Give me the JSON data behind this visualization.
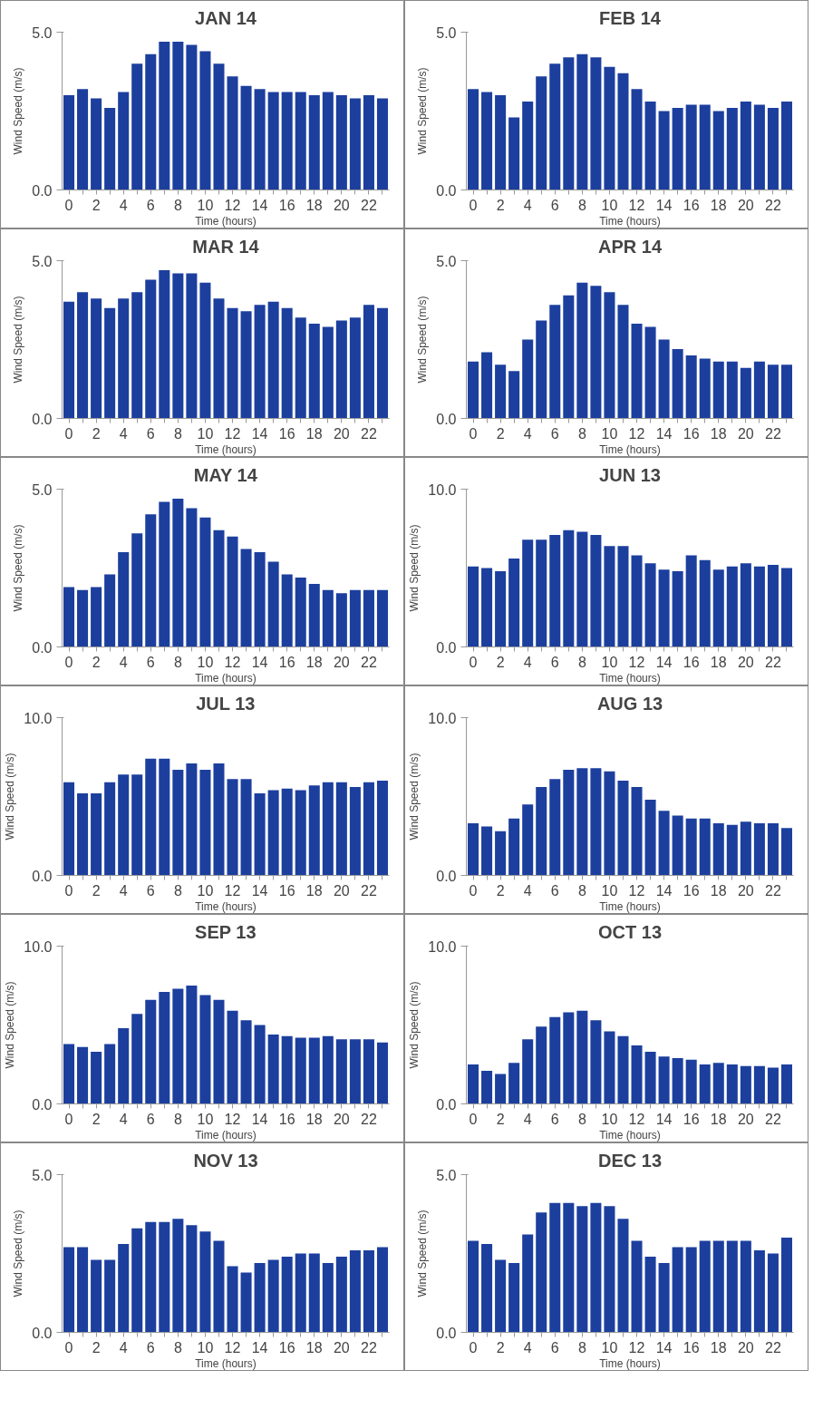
{
  "chart_data": [
    {
      "type": "bar",
      "title": "JAN 14",
      "xlabel": "Time (hours)",
      "ylabel": "Wind Speed (m/s)",
      "categories": [
        "0",
        null,
        "2",
        null,
        "4",
        null,
        "6",
        null,
        "8",
        null,
        "10",
        null,
        "12",
        null,
        "14",
        null,
        "16",
        null,
        "18",
        null,
        "20",
        null,
        "22",
        null
      ],
      "color": "#1c3f9e",
      "ylim": [
        0,
        5
      ],
      "yticks": [
        {
          "value": 0,
          "label": "0.0"
        },
        {
          "value": 5,
          "label": "5.0"
        }
      ],
      "grid": false,
      "values": [
        3.0,
        3.2,
        2.9,
        2.6,
        3.1,
        4.0,
        4.3,
        4.7,
        4.7,
        4.6,
        4.4,
        4.0,
        3.6,
        3.3,
        3.2,
        3.1,
        3.1,
        3.1,
        3.0,
        3.1,
        3.0,
        2.9,
        3.0,
        2.9
      ]
    },
    {
      "type": "bar",
      "title": "FEB 14",
      "xlabel": "Time (hours)",
      "ylabel": "Wind Speed (m/s)",
      "categories": [
        "0",
        null,
        "2",
        null,
        "4",
        null,
        "6",
        null,
        "8",
        null,
        "10",
        null,
        "12",
        null,
        "14",
        null,
        "16",
        null,
        "18",
        null,
        "20",
        null,
        "22",
        null
      ],
      "color": "#1c3f9e",
      "ylim": [
        0,
        5
      ],
      "yticks": [
        {
          "value": 0,
          "label": "0.0"
        },
        {
          "value": 5,
          "label": "5.0"
        }
      ],
      "grid": false,
      "values": [
        3.2,
        3.1,
        3.0,
        2.3,
        2.8,
        3.6,
        4.0,
        4.2,
        4.3,
        4.2,
        3.9,
        3.7,
        3.2,
        2.8,
        2.5,
        2.6,
        2.7,
        2.7,
        2.5,
        2.6,
        2.8,
        2.7,
        2.6,
        2.8
      ]
    },
    {
      "type": "bar",
      "title": "MAR 14",
      "xlabel": "Time (hours)",
      "ylabel": "Wind Speed (m/s)",
      "categories": [
        "0",
        null,
        "2",
        null,
        "4",
        null,
        "6",
        null,
        "8",
        null,
        "10",
        null,
        "12",
        null,
        "14",
        null,
        "16",
        null,
        "18",
        null,
        "20",
        null,
        "22",
        null
      ],
      "color": "#1c3f9e",
      "ylim": [
        0,
        5
      ],
      "yticks": [
        {
          "value": 0,
          "label": "0.0"
        },
        {
          "value": 5,
          "label": "5.0"
        }
      ],
      "grid": false,
      "values": [
        3.7,
        4.0,
        3.8,
        3.5,
        3.8,
        4.0,
        4.4,
        4.7,
        4.6,
        4.6,
        4.3,
        3.8,
        3.5,
        3.4,
        3.6,
        3.7,
        3.5,
        3.2,
        3.0,
        2.9,
        3.1,
        3.2,
        3.6,
        3.5
      ]
    },
    {
      "type": "bar",
      "title": "APR 14",
      "xlabel": "Time (hours)",
      "ylabel": "Wind Speed (m/s)",
      "categories": [
        "0",
        null,
        "2",
        null,
        "4",
        null,
        "6",
        null,
        "8",
        null,
        "10",
        null,
        "12",
        null,
        "14",
        null,
        "16",
        null,
        "18",
        null,
        "20",
        null,
        "22",
        null
      ],
      "color": "#1c3f9e",
      "ylim": [
        0,
        5
      ],
      "yticks": [
        {
          "value": 0,
          "label": "0.0"
        },
        {
          "value": 5,
          "label": "5.0"
        }
      ],
      "grid": false,
      "values": [
        1.8,
        2.1,
        1.7,
        1.5,
        2.5,
        3.1,
        3.6,
        3.9,
        4.3,
        4.2,
        4.0,
        3.6,
        3.0,
        2.9,
        2.5,
        2.2,
        2.0,
        1.9,
        1.8,
        1.8,
        1.6,
        1.8,
        1.7,
        1.7
      ]
    },
    {
      "type": "bar",
      "title": "MAY 14",
      "xlabel": "Time (hours)",
      "ylabel": "Wind Speed (m/s)",
      "categories": [
        "0",
        null,
        "2",
        null,
        "4",
        null,
        "6",
        null,
        "8",
        null,
        "10",
        null,
        "12",
        null,
        "14",
        null,
        "16",
        null,
        "18",
        null,
        "20",
        null,
        "22",
        null
      ],
      "color": "#1c3f9e",
      "ylim": [
        0,
        5
      ],
      "yticks": [
        {
          "value": 0,
          "label": "0.0"
        },
        {
          "value": 5,
          "label": "5.0"
        }
      ],
      "grid": false,
      "values": [
        1.9,
        1.8,
        1.9,
        2.3,
        3.0,
        3.6,
        4.2,
        4.6,
        4.7,
        4.4,
        4.1,
        3.7,
        3.5,
        3.1,
        3.0,
        2.7,
        2.3,
        2.2,
        2.0,
        1.8,
        1.7,
        1.8,
        1.8,
        1.8
      ]
    },
    {
      "type": "bar",
      "title": "JUN 13",
      "xlabel": "Time (hours)",
      "ylabel": "Wind Speed (m/s)",
      "categories": [
        "0",
        null,
        "2",
        null,
        "4",
        null,
        "6",
        null,
        "8",
        null,
        "10",
        null,
        "12",
        null,
        "14",
        null,
        "16",
        null,
        "18",
        null,
        "20",
        null,
        "22",
        null
      ],
      "color": "#1c3f9e",
      "ylim": [
        0,
        10
      ],
      "yticks": [
        {
          "value": 0,
          "label": "0.0"
        },
        {
          "value": 10,
          "label": "10.0"
        }
      ],
      "grid": false,
      "values": [
        5.1,
        5.0,
        4.8,
        5.6,
        6.8,
        6.8,
        7.1,
        7.4,
        7.3,
        7.1,
        6.4,
        6.4,
        5.8,
        5.3,
        4.9,
        4.8,
        5.8,
        5.5,
        4.9,
        5.1,
        5.3,
        5.1,
        5.2,
        5.0
      ]
    },
    {
      "type": "bar",
      "title": "JUL 13",
      "xlabel": "Time (hours)",
      "ylabel": "Wind Speed (m/s)",
      "categories": [
        "0",
        null,
        "2",
        null,
        "4",
        null,
        "6",
        null,
        "8",
        null,
        "10",
        null,
        "12",
        null,
        "14",
        null,
        "16",
        null,
        "18",
        null,
        "20",
        null,
        "22",
        null
      ],
      "color": "#1c3f9e",
      "ylim": [
        0,
        10
      ],
      "yticks": [
        {
          "value": 0,
          "label": "0.0"
        },
        {
          "value": 10,
          "label": "10.0"
        }
      ],
      "grid": false,
      "values": [
        5.9,
        5.2,
        5.2,
        5.9,
        6.4,
        6.4,
        7.4,
        7.4,
        6.7,
        7.1,
        6.7,
        7.1,
        6.1,
        6.1,
        5.2,
        5.4,
        5.5,
        5.4,
        5.7,
        5.9,
        5.9,
        5.6,
        5.9,
        6.0
      ]
    },
    {
      "type": "bar",
      "title": "AUG 13",
      "xlabel": "Time (hours)",
      "ylabel": "Wind Speed (m/s)",
      "categories": [
        "0",
        null,
        "2",
        null,
        "4",
        null,
        "6",
        null,
        "8",
        null,
        "10",
        null,
        "12",
        null,
        "14",
        null,
        "16",
        null,
        "18",
        null,
        "20",
        null,
        "22",
        null
      ],
      "color": "#1c3f9e",
      "ylim": [
        0,
        10
      ],
      "yticks": [
        {
          "value": 0,
          "label": "0.0"
        },
        {
          "value": 10,
          "label": "10.0"
        }
      ],
      "grid": false,
      "values": [
        3.3,
        3.1,
        2.8,
        3.6,
        4.5,
        5.6,
        6.1,
        6.7,
        6.8,
        6.8,
        6.6,
        6.0,
        5.6,
        4.8,
        4.1,
        3.8,
        3.6,
        3.6,
        3.3,
        3.2,
        3.4,
        3.3,
        3.3,
        3.0
      ]
    },
    {
      "type": "bar",
      "title": "SEP 13",
      "xlabel": "Time (hours)",
      "ylabel": "Wind Speed (m/s)",
      "categories": [
        "0",
        null,
        "2",
        null,
        "4",
        null,
        "6",
        null,
        "8",
        null,
        "10",
        null,
        "12",
        null,
        "14",
        null,
        "16",
        null,
        "18",
        null,
        "20",
        null,
        "22",
        null
      ],
      "color": "#1c3f9e",
      "ylim": [
        0,
        10
      ],
      "yticks": [
        {
          "value": 0,
          "label": "0.0"
        },
        {
          "value": 10,
          "label": "10.0"
        }
      ],
      "grid": false,
      "values": [
        3.8,
        3.6,
        3.3,
        3.8,
        4.8,
        5.7,
        6.6,
        7.1,
        7.3,
        7.5,
        6.9,
        6.6,
        5.9,
        5.3,
        5.0,
        4.4,
        4.3,
        4.2,
        4.2,
        4.3,
        4.1,
        4.1,
        4.1,
        3.9
      ]
    },
    {
      "type": "bar",
      "title": "OCT 13",
      "xlabel": "Time (hours)",
      "ylabel": "Wind Speed (m/s)",
      "categories": [
        "0",
        null,
        "2",
        null,
        "4",
        null,
        "6",
        null,
        "8",
        null,
        "10",
        null,
        "12",
        null,
        "14",
        null,
        "16",
        null,
        "18",
        null,
        "20",
        null,
        "22",
        null
      ],
      "color": "#1c3f9e",
      "ylim": [
        0,
        10
      ],
      "yticks": [
        {
          "value": 0,
          "label": "0.0"
        },
        {
          "value": 10,
          "label": "10.0"
        }
      ],
      "grid": false,
      "values": [
        2.5,
        2.1,
        1.9,
        2.6,
        4.1,
        4.9,
        5.5,
        5.8,
        5.9,
        5.3,
        4.6,
        4.3,
        3.7,
        3.3,
        3.0,
        2.9,
        2.8,
        2.5,
        2.6,
        2.5,
        2.4,
        2.4,
        2.3,
        2.5
      ]
    },
    {
      "type": "bar",
      "title": "NOV 13",
      "xlabel": "Time (hours)",
      "ylabel": "Wind Speed (m/s)",
      "categories": [
        "0",
        null,
        "2",
        null,
        "4",
        null,
        "6",
        null,
        "8",
        null,
        "10",
        null,
        "12",
        null,
        "14",
        null,
        "16",
        null,
        "18",
        null,
        "20",
        null,
        "22",
        null
      ],
      "color": "#1c3f9e",
      "ylim": [
        0,
        5
      ],
      "yticks": [
        {
          "value": 0,
          "label": "0.0"
        },
        {
          "value": 5,
          "label": "5.0"
        }
      ],
      "grid": false,
      "values": [
        2.7,
        2.7,
        2.3,
        2.3,
        2.8,
        3.3,
        3.5,
        3.5,
        3.6,
        3.4,
        3.2,
        2.9,
        2.1,
        1.9,
        2.2,
        2.3,
        2.4,
        2.5,
        2.5,
        2.2,
        2.4,
        2.6,
        2.6,
        2.7
      ]
    },
    {
      "type": "bar",
      "title": "DEC 13",
      "xlabel": "Time (hours)",
      "ylabel": "Wind Speed (m/s)",
      "categories": [
        "0",
        null,
        "2",
        null,
        "4",
        null,
        "6",
        null,
        "8",
        null,
        "10",
        null,
        "12",
        null,
        "14",
        null,
        "16",
        null,
        "18",
        null,
        "20",
        null,
        "22",
        null
      ],
      "color": "#1c3f9e",
      "ylim": [
        0,
        5
      ],
      "yticks": [
        {
          "value": 0,
          "label": "0.0"
        },
        {
          "value": 5,
          "label": "5.0"
        }
      ],
      "grid": false,
      "values": [
        2.9,
        2.8,
        2.3,
        2.2,
        3.1,
        3.8,
        4.1,
        4.1,
        4.0,
        4.1,
        4.0,
        3.6,
        2.9,
        2.4,
        2.2,
        2.7,
        2.7,
        2.9,
        2.9,
        2.9,
        2.9,
        2.6,
        2.5,
        3.0
      ]
    }
  ]
}
